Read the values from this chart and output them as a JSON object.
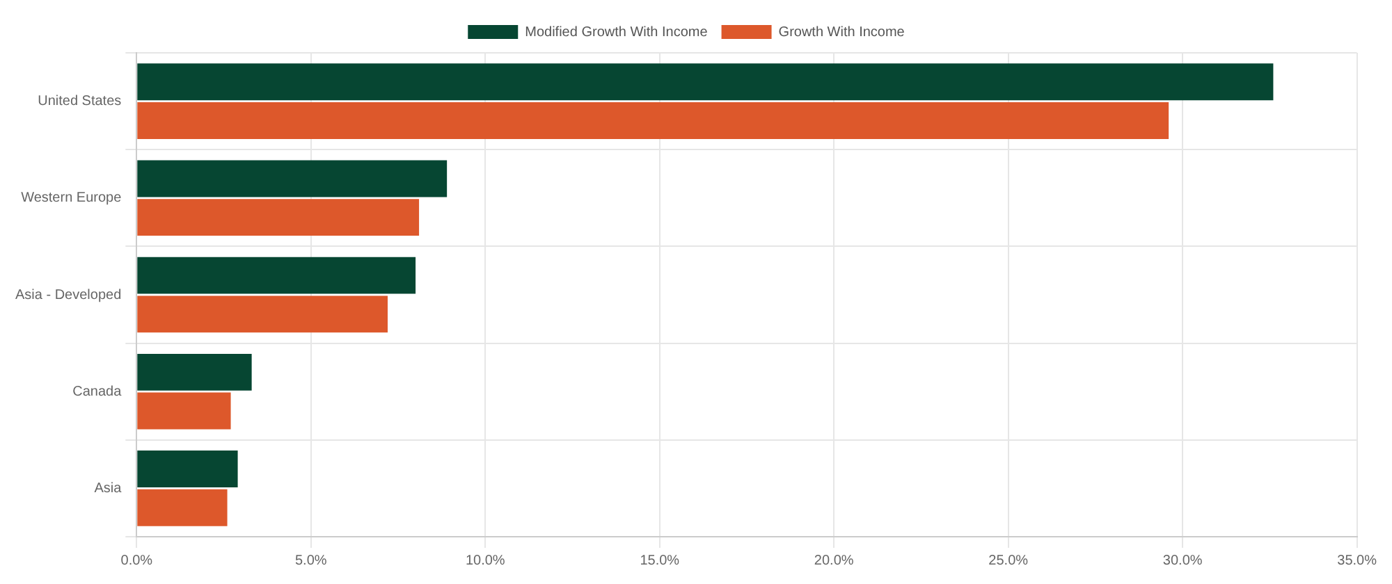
{
  "chart_data": {
    "type": "bar",
    "orientation": "horizontal",
    "categories": [
      "United States",
      "Western Europe",
      "Asia - Developed",
      "Canada",
      "Asia"
    ],
    "series": [
      {
        "name": "Modified Growth With Income",
        "color": "#064632",
        "values": [
          32.6,
          8.9,
          8.0,
          3.3,
          2.9
        ]
      },
      {
        "name": "Growth With Income",
        "color": "#dd582b",
        "values": [
          29.6,
          8.1,
          7.2,
          2.7,
          2.6
        ]
      }
    ],
    "xlim": [
      0,
      35
    ],
    "xticks": [
      {
        "value": 0,
        "label": "0.0%"
      },
      {
        "value": 5,
        "label": "5.0%"
      },
      {
        "value": 10,
        "label": "10.0%"
      },
      {
        "value": 15,
        "label": "15.0%"
      },
      {
        "value": 20,
        "label": "20.0%"
      },
      {
        "value": 25,
        "label": "25.0%"
      },
      {
        "value": 30,
        "label": "30.0%"
      },
      {
        "value": 35,
        "label": "35.0%"
      }
    ],
    "grid": true,
    "legend": "top"
  }
}
